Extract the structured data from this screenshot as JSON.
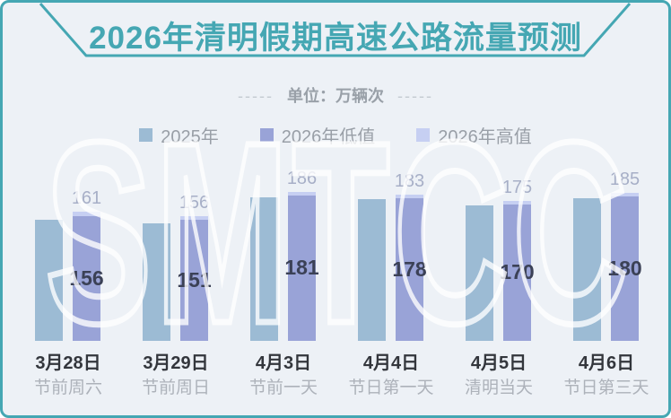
{
  "page": {
    "title": "2026年清明假期高速公路流量预测",
    "unit_dashes": "-----",
    "unit_label": "单位：万辆次",
    "watermark": "SMTCC"
  },
  "colors": {
    "accent_teal": "#45a7b3",
    "background": "#edf1f6",
    "series_2025": "#9cbbd4",
    "series_2026_low": "#99a3d7",
    "series_2026_high": "#c6cff2",
    "value_label_high": "#a7afc7",
    "value_label_low": "#3b4156"
  },
  "legend": {
    "items": [
      {
        "label": "2025年",
        "color": "#9cbbd4"
      },
      {
        "label": "2026年低值",
        "color": "#99a3d7"
      },
      {
        "label": "2026年高值",
        "color": "#c6cff2"
      }
    ]
  },
  "chart_data": {
    "type": "bar",
    "title": "2026年清明假期高速公路流量预测",
    "unit": "万辆次",
    "categories": [
      "3月28日",
      "3月29日",
      "4月3日",
      "4月4日",
      "4月5日",
      "4月6日"
    ],
    "category_notes": [
      "节前周六",
      "节前周日",
      "节前一天",
      "节日第一天",
      "清明当天",
      "节日第三天"
    ],
    "series": [
      {
        "name": "2025年",
        "color": "#9cbbd4",
        "values": [
          151,
          147,
          179,
          177,
          169,
          178
        ],
        "values_estimated": true,
        "show_labels": false
      },
      {
        "name": "2026年低值",
        "color": "#99a3d7",
        "values": [
          156,
          151,
          181,
          178,
          170,
          180
        ],
        "show_labels": true
      },
      {
        "name": "2026年高值",
        "color": "#c6cff2",
        "values": [
          161,
          156,
          186,
          183,
          175,
          185
        ],
        "show_labels": true
      }
    ],
    "ylim": [
      0,
      200
    ],
    "grid": false,
    "legend_position": "top",
    "value_labels": "2026 high above bar, 2026 low centered inside bar"
  }
}
